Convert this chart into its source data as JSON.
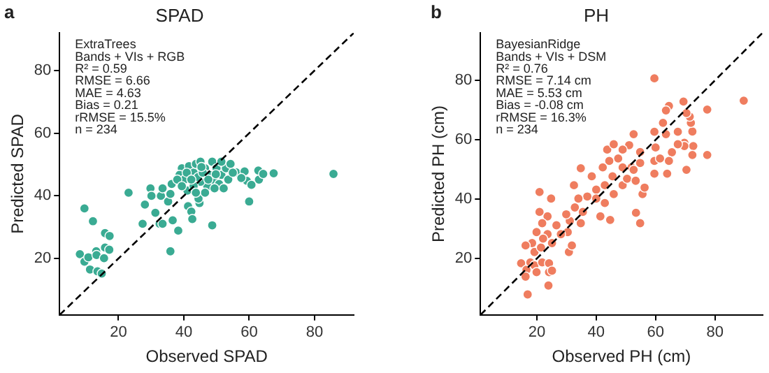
{
  "chart_data": [
    {
      "type": "scatter",
      "title": "SPAD",
      "xlabel": "Observed SPAD",
      "ylabel": "Predicted SPAD",
      "annotations": [
        "a",
        "ExtraTrees",
        "Bands + VIs + RGB",
        "R² = 0.59",
        "RMSE = 6.66",
        "MAE = 4.63",
        "Bias = 0.21",
        "rRMSE = 15.5%",
        "n = 234"
      ],
      "xlim": [
        2,
        92
      ],
      "ylim": [
        2,
        92
      ],
      "xticks": [
        20,
        40,
        60,
        80
      ],
      "yticks": [
        20,
        40,
        60,
        80
      ],
      "grid": false,
      "marker": "circle",
      "series": [
        {
          "type": "scatter",
          "color": "#3aab93",
          "x": [
            9.6,
            12.2,
            8.2,
            9.6,
            10.8,
            11.3,
            13.2,
            13.3,
            13.6,
            14.9,
            15.9,
            15.9,
            15.6,
            17.3,
            17.2,
            23.1,
            27.4,
            28.1,
            29.8,
            30.1,
            31.3,
            32.6,
            33.0,
            33.5,
            33.5,
            35.2,
            35.9,
            35.9,
            36.3,
            36.6,
            38.3,
            41.1,
            41.3,
            42.3,
            42.6,
            44.8,
            44.5,
            48.7,
            60.0,
            59.3,
            62.8,
            56.0,
            58.6,
            57.6,
            63.0,
            64.3,
            67.5,
            85.8,
            60.7,
            39.4,
            38.7,
            40.2,
            38.0,
            39.4,
            41.6,
            43.0,
            43.7,
            45.1,
            46.5,
            47.9,
            48.7,
            50.0,
            51.5,
            52.9,
            53.6,
            49.4,
            47.2,
            45.1,
            43.0,
            44.4,
            45.8,
            40.9,
            42.3,
            50.8,
            52.2,
            49.4,
            46.5,
            43.7,
            51.5,
            54.3,
            55.0,
            47.5,
            45.4,
            49.8
          ],
          "values": [
            36.0,
            31.9,
            21.4,
            19.0,
            20.4,
            16.5,
            22.3,
            21.1,
            15.9,
            15.2,
            28.1,
            23.5,
            20.1,
            27.2,
            22.8,
            41.0,
            31.1,
            37.2,
            42.4,
            40.0,
            34.6,
            31.1,
            40.0,
            42.4,
            31.1,
            38.2,
            40.6,
            22.3,
            43.8,
            32.2,
            28.9,
            41.7,
            36.7,
            35.0,
            32.6,
            37.7,
            39.1,
            30.6,
            38.2,
            44.8,
            48.1,
            47.5,
            47.8,
            45.7,
            45.2,
            47.0,
            47.2,
            47.0,
            43.5,
            48.8,
            46.7,
            45.2,
            45.2,
            43.1,
            49.5,
            47.4,
            50.2,
            50.9,
            48.8,
            46.7,
            50.9,
            48.8,
            46.7,
            48.8,
            45.2,
            44.5,
            43.1,
            44.5,
            43.1,
            46.0,
            47.4,
            47.4,
            45.2,
            43.8,
            42.4,
            42.4,
            41.0,
            41.0,
            50.9,
            50.2,
            47.4,
            45.2,
            49.2,
            46.9
          ]
        },
        {
          "type": "line",
          "color": "#000000",
          "x": [
            2,
            92
          ],
          "values": [
            2,
            92
          ],
          "line_style": "dashed",
          "marker": "none"
        }
      ]
    },
    {
      "type": "scatter",
      "title": "PH",
      "xlabel": "Observed PH (cm)",
      "ylabel": "Predicted PH (cm)",
      "annotations": [
        "b",
        "BayesianRidge",
        "Bands + VIs + DSM",
        "R² = 0.76",
        "RMSE = 7.14 cm",
        "MAE = 5.53 cm",
        "Bias = -0.08 cm",
        "rRMSE = 16.3%",
        "n = 234"
      ],
      "xlim": [
        1,
        96
      ],
      "ylim": [
        1,
        96
      ],
      "xticks": [
        20,
        40,
        60,
        80
      ],
      "yticks": [
        20,
        40,
        60,
        80
      ],
      "grid": false,
      "marker": "circle",
      "series": [
        {
          "type": "scatter",
          "color": "#ef7d5f",
          "x": [
            59.6,
            89.7,
            77.4,
            77.4,
            72.7,
            72.4,
            71.9,
            71.5,
            70.4,
            69.4,
            64.5,
            63.5,
            69.7,
            69.7,
            70.4,
            72.4,
            67.5,
            67.5,
            65.5,
            64.5,
            63.9,
            62.5,
            63.5,
            59.6,
            60.0,
            59.6,
            59.6,
            61.5,
            54.8,
            52.6,
            55.6,
            53.4,
            54.8,
            56.3,
            44.7,
            41.4,
            34.8,
            38.5,
            43.7,
            45.9,
            51.1,
            48.9,
            48.9,
            51.9,
            47.4,
            44.4,
            42.2,
            45.5,
            42.9,
            40.0,
            37.0,
            40.0,
            42.9,
            45.9,
            48.9,
            50.4,
            53.3,
            52.6,
            54.8,
            32.5,
            34.0,
            32.8,
            34.8,
            35.5,
            31.1,
            29.9,
            30.4,
            30.8,
            31.8,
            28.1,
            26.6,
            25.1,
            23.6,
            23.6,
            24.8,
            20.9,
            20.9,
            21.8,
            19.9,
            18.4,
            16.2,
            19.2,
            21.4,
            22.1,
            14.7,
            16.5,
            16.2,
            17.8,
            19.2,
            19.9,
            21.8,
            24.1,
            24.1,
            25.1,
            23.9,
            16.9
          ],
          "values": [
            80.7,
            73.2,
            70.2,
            54.9,
            57.9,
            62.8,
            65.7,
            67.8,
            69.0,
            72.9,
            71.4,
            69.9,
            59.0,
            57.9,
            49.9,
            54.9,
            62.7,
            58.5,
            55.8,
            52.9,
            48.6,
            65.7,
            61.9,
            62.7,
            57.4,
            52.9,
            48.6,
            53.7,
            55.9,
            61.9,
            41.7,
            35.4,
            31.9,
            43.9,
            33.0,
            34.2,
            50.4,
            47.7,
            56.7,
            58.5,
            58.2,
            56.7,
            50.7,
            50.7,
            53.7,
            52.9,
            50.7,
            47.7,
            44.7,
            43.2,
            40.9,
            40.2,
            38.7,
            41.7,
            44.7,
            46.9,
            46.2,
            49.9,
            52.2,
            44.7,
            40.2,
            37.2,
            31.9,
            35.7,
            32.7,
            34.9,
            28.9,
            22.2,
            24.4,
            28.2,
            31.2,
            25.2,
            28.2,
            34.2,
            40.2,
            42.4,
            35.7,
            31.9,
            28.9,
            25.2,
            24.4,
            22.2,
            23.7,
            26.7,
            18.4,
            16.2,
            13.9,
            18.7,
            17.7,
            15.4,
            18.7,
            18.4,
            15.4,
            15.9,
            10.9,
            7.9
          ]
        },
        {
          "type": "line",
          "color": "#000000",
          "x": [
            1,
            96
          ],
          "values": [
            1,
            96
          ],
          "line_style": "dashed",
          "marker": "none"
        }
      ]
    }
  ]
}
